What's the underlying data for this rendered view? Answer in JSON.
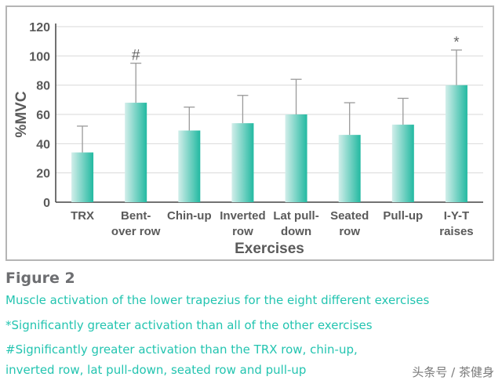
{
  "chart_data": {
    "type": "bar",
    "categories": [
      [
        "TRX"
      ],
      [
        "Bent-",
        "over row"
      ],
      [
        "Chin-up"
      ],
      [
        "Inverted",
        "row"
      ],
      [
        "Lat pull-",
        "down"
      ],
      [
        "Seated",
        "row"
      ],
      [
        "Pull-up"
      ],
      [
        "I-Y-T",
        "raises"
      ]
    ],
    "values": [
      34,
      68,
      49,
      54,
      60,
      46,
      53,
      80
    ],
    "error": [
      18,
      27,
      16,
      19,
      24,
      22,
      18,
      24
    ],
    "annotations": [
      "",
      "#",
      "",
      "",
      "",
      "",
      "",
      "*"
    ],
    "xlabel": "Exercises",
    "ylabel": "%MVC",
    "ylim": [
      0,
      120
    ],
    "yticks": [
      0,
      20,
      40,
      60,
      80,
      100,
      120
    ],
    "grid": true,
    "colors": {
      "bar_light": "#d2eeea",
      "bar_dark": "#22b9a1",
      "error_bar": "#9a9a9a",
      "grid": "#d9d9d9",
      "text": "#5a5a5a"
    }
  },
  "caption": {
    "figure_label": "Figure 2",
    "lines": [
      "Muscle activation of the lower trapezius for the eight different exercises",
      "*Significantly greater activation than all of the other exercises",
      "#Significantly greater activation than the TRX row, chin-up,",
      "inverted row, lat pull-down, seated row and pull-up"
    ]
  },
  "watermark": "头条号 / 茶健身"
}
